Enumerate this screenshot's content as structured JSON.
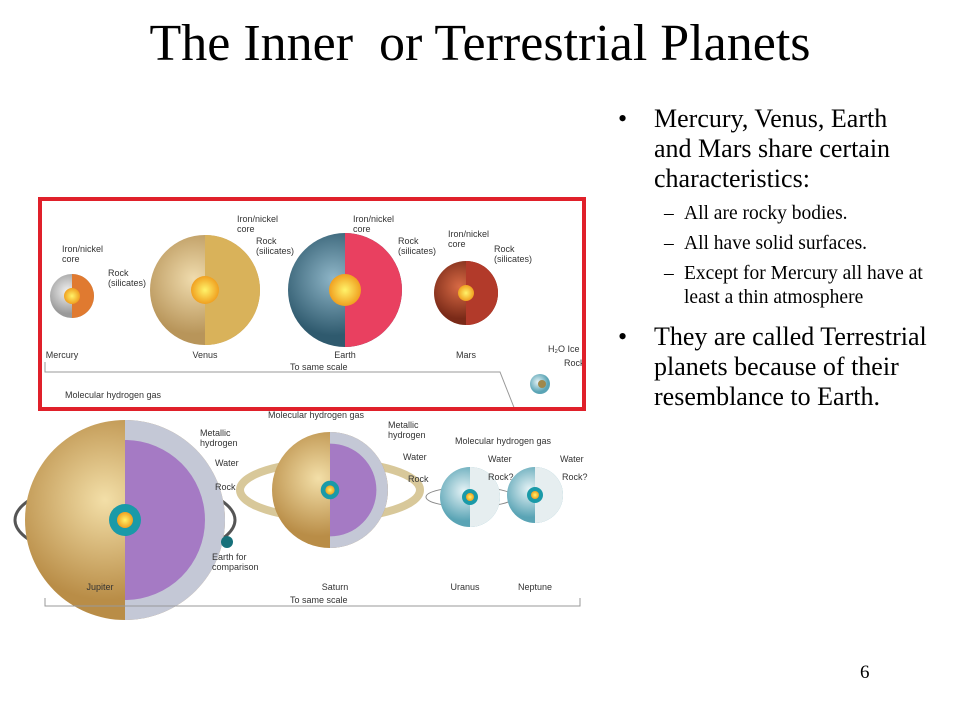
{
  "title": "The Inner  or Terrestrial Planets",
  "bullets": [
    {
      "text": "Mercury, Venus, Earth and Mars share certain characteristics:",
      "sub": [
        "All are rocky bodies.",
        "All have solid surfaces.",
        "Except for Mercury all have at least a thin atmosphere"
      ]
    },
    {
      "text": "They are called Terrestrial planets because of their resemblance  to Earth.",
      "sub": []
    }
  ],
  "page_number": "6",
  "figure": {
    "inner": {
      "planets": [
        {
          "name": "Mercury",
          "labels": [
            [
              "Iron/nickel",
              "core"
            ],
            [
              "Rock",
              "(silicates)"
            ]
          ]
        },
        {
          "name": "Venus",
          "labels": [
            [
              "Iron/nickel",
              "core"
            ],
            [
              "Rock",
              "(silicates)"
            ]
          ]
        },
        {
          "name": "Earth",
          "labels": [
            [
              "Iron/nickel",
              "core"
            ],
            [
              "Rock",
              "(silicates)"
            ]
          ]
        },
        {
          "name": "Mars",
          "labels": [
            [
              "Iron/nickel",
              "core"
            ],
            [
              "Rock",
              "(silicates)"
            ]
          ]
        }
      ],
      "scale_note": "To same scale",
      "pluto_labels": [
        "H₂O Ice",
        "Rock"
      ]
    },
    "outer": {
      "planets": [
        {
          "name": "Jupiter",
          "labels": [
            [
              "Molecular hydrogen gas"
            ],
            [
              "Metallic",
              "hydrogen"
            ],
            [
              "Water"
            ],
            [
              "Rock"
            ]
          ]
        },
        {
          "name": "Saturn",
          "labels": [
            [
              "Molecular hydrogen gas"
            ],
            [
              "Metallic",
              "hydrogen"
            ],
            [
              "Water"
            ],
            [
              "Rock"
            ]
          ]
        },
        {
          "name": "Uranus",
          "labels": [
            [
              "Molecular hydrogen gas"
            ],
            [
              "Water"
            ],
            [
              "Rock?"
            ]
          ]
        },
        {
          "name": "Neptune",
          "labels": [
            [
              "Water"
            ],
            [
              "Rock?"
            ]
          ]
        }
      ],
      "earth_note": [
        "Earth for",
        "comparison"
      ],
      "scale_note": "To same scale"
    }
  }
}
